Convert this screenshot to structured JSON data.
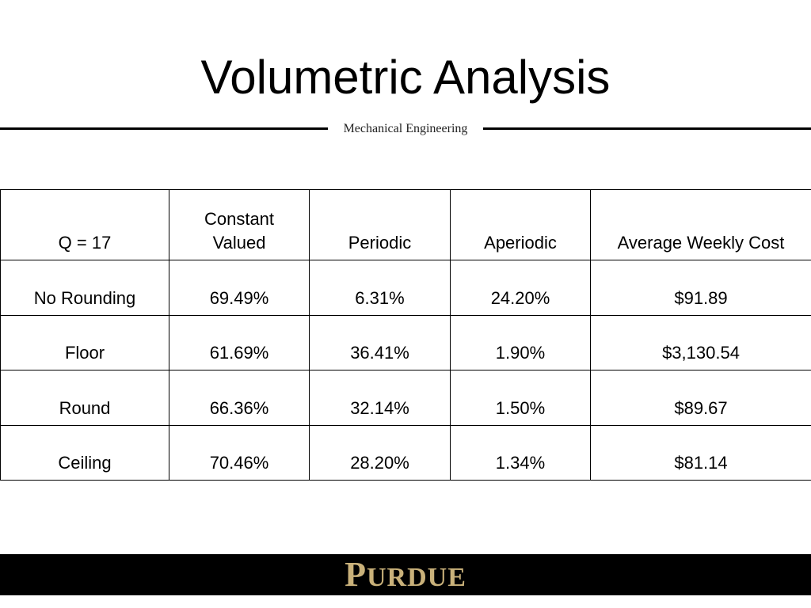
{
  "slide": {
    "title": "Volumetric Analysis",
    "department": "Mechanical Engineering"
  },
  "table": {
    "headers": {
      "row_label": "Q = 17",
      "constant_line1": "Constant",
      "constant_line2": "Valued",
      "periodic": "Periodic",
      "aperiodic": "Aperiodic",
      "cost": "Average Weekly Cost"
    },
    "rows": [
      {
        "label": "No Rounding",
        "constant": "69.49%",
        "periodic": "6.31%",
        "aperiodic": "24.20%",
        "cost": "$91.89"
      },
      {
        "label": "Floor",
        "constant": "61.69%",
        "periodic": "36.41%",
        "aperiodic": "1.90%",
        "cost": "$3,130.54"
      },
      {
        "label": "Round",
        "constant": "66.36%",
        "periodic": "32.14%",
        "aperiodic": "1.50%",
        "cost": "$89.67"
      },
      {
        "label": "Ceiling",
        "constant": "70.46%",
        "periodic": "28.20%",
        "aperiodic": "1.34%",
        "cost": "$81.14"
      }
    ]
  },
  "footer": {
    "logo_first": "P",
    "logo_rest": "URDUE",
    "logo_color": "#c9b17a"
  }
}
